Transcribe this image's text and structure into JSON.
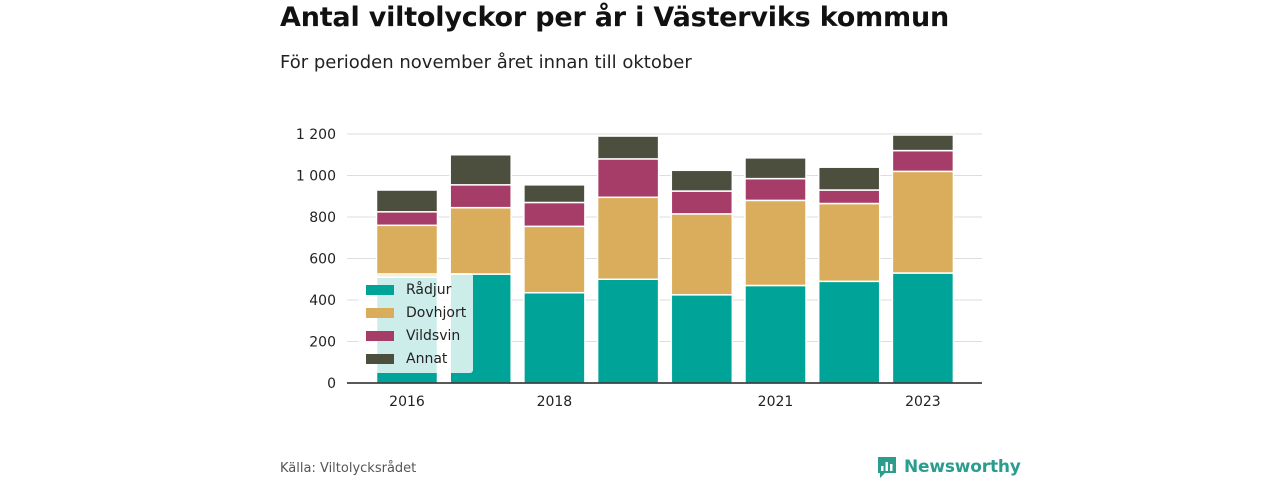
{
  "header": {
    "title": "Antal viltolyckor per år i Västerviks kommun",
    "subtitle": "För perioden november året innan till oktober"
  },
  "footer": {
    "source": "Källa: Viltolycksrådet",
    "brand": "Newsworthy"
  },
  "colors": {
    "Rådjur": "#00a398",
    "Dovhjort": "#d9ad5b",
    "Vildsvin": "#a63d68",
    "Annat": "#4c4e3e",
    "grid": "#dddddd",
    "axis": "#222222",
    "brand": "#2a9d8f"
  },
  "chart_data": {
    "type": "bar",
    "stacked": true,
    "years": [
      2016,
      2017,
      2018,
      2019,
      2020,
      2021,
      2022,
      2023
    ],
    "x_tick_labels": [
      "2016",
      "2018",
      "2021",
      "2023"
    ],
    "x_tick_years": [
      2016,
      2018,
      2021,
      2023
    ],
    "y_ticks": [
      0,
      200,
      400,
      600,
      800,
      1000,
      1200
    ],
    "y_tick_labels": [
      "0",
      "200",
      "400",
      "600",
      "800",
      "1 000",
      "1 200"
    ],
    "ylim": [
      0,
      1200
    ],
    "grid": true,
    "legend_position": "bottom-left",
    "series": [
      {
        "name": "Rådjur",
        "values": [
          510,
          525,
          435,
          500,
          425,
          470,
          490,
          530
        ]
      },
      {
        "name": "Dovhjort",
        "values": [
          250,
          320,
          320,
          395,
          390,
          410,
          375,
          490
        ]
      },
      {
        "name": "Vildsvin",
        "values": [
          65,
          110,
          115,
          185,
          110,
          105,
          65,
          100
        ]
      },
      {
        "name": "Annat",
        "values": [
          105,
          145,
          85,
          110,
          100,
          100,
          110,
          75
        ]
      }
    ]
  }
}
